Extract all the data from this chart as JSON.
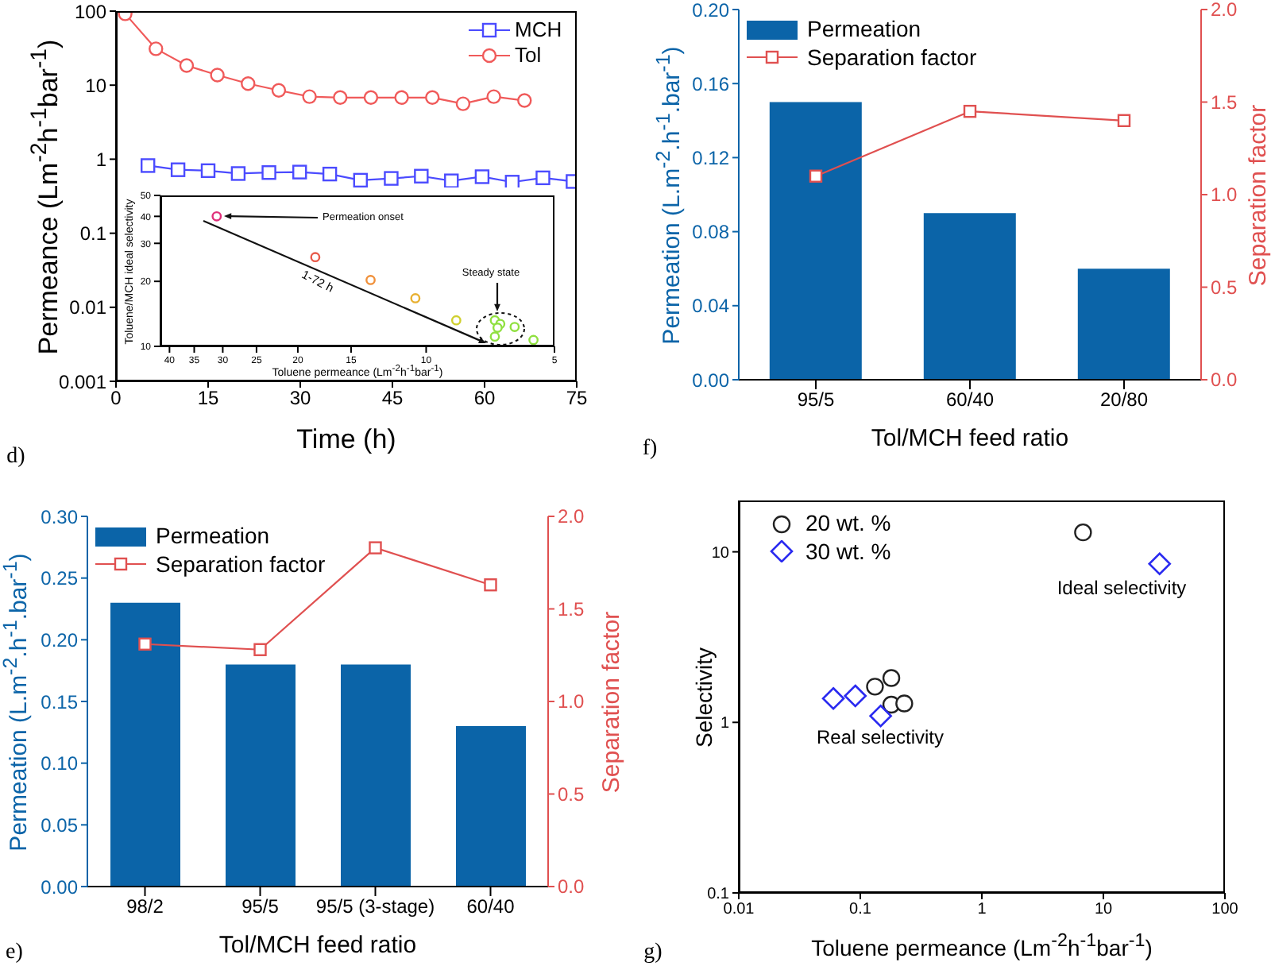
{
  "chart_data": [
    {
      "type": "line",
      "xlabel": "Time (h)",
      "ylabel": "Permeance (Lm$^{-2}$h$^{-1}$bar$^{-1}$)",
      "log": "y",
      "xlim": [
        0,
        75
      ],
      "xticks": [
        0,
        15,
        30,
        45,
        60,
        75
      ],
      "ylim": [
        0.001,
        100
      ],
      "yticks": [
        0.001,
        0.01,
        0.1,
        1,
        10,
        100
      ],
      "legend": "top right",
      "annotations": [
        "d)"
      ],
      "series": [
        {
          "name": "MCH",
          "color": "#4b4bff",
          "marker": "square",
          "x": [
            5.2,
            10.1,
            15,
            19.9,
            24.9,
            29.9,
            34.8,
            39.8,
            44.8,
            49.7,
            54.6,
            59.6,
            64.5,
            69.5,
            74.4
          ],
          "values": [
            0.82,
            0.72,
            0.7,
            0.64,
            0.66,
            0.67,
            0.63,
            0.52,
            0.55,
            0.59,
            0.51,
            0.58,
            0.49,
            0.56,
            0.5
          ]
        },
        {
          "name": "Tol",
          "color": "#f05a5a",
          "marker": "circle",
          "x": [
            1.5,
            6.5,
            11.5,
            16.5,
            21.5,
            26.5,
            31.5,
            36.5,
            41.5,
            46.5,
            51.5,
            56.5,
            61.5,
            66.5
          ],
          "values": [
            92,
            31,
            18.4,
            13.7,
            10.5,
            8.5,
            7,
            6.8,
            6.8,
            6.8,
            6.8,
            5.6,
            7,
            6.2
          ]
        }
      ]
    },
    {
      "type": "scatter",
      "xlabel": "Toluene permeance (Lm$^{-2}$h$^{-1}$bar$^{-1}$)",
      "ylabel": "Toluene/MCH ideal selectivity",
      "log": "xy",
      "xlim": [
        42,
        5
      ],
      "xticks": [
        40,
        35,
        30,
        25,
        20,
        15,
        10,
        5
      ],
      "ylim": [
        10,
        50
      ],
      "yticks": [
        10,
        20,
        30,
        40,
        50
      ],
      "marker": "circle",
      "x": [
        31,
        18.2,
        13.5,
        10.6,
        8.5,
        6.9,
        6.7,
        6.8,
        6.9,
        6.2,
        5.6
      ],
      "values": [
        40,
        25.9,
        20.3,
        16.7,
        13.2,
        13.2,
        12.7,
        12.2,
        11.1,
        12.3,
        10.7
      ],
      "colors": [
        "#e0307a",
        "#e85a4a",
        "#f0903a",
        "#e8b030",
        "#d0d030",
        "#90e040",
        "#90e040",
        "#90e040",
        "#90e040",
        "#90e040",
        "#90e040"
      ],
      "annotations": [
        "Permeation onset",
        "Steady state",
        "1-72 h"
      ]
    },
    {
      "type": "bar",
      "categories": [
        "95/5",
        "60/40",
        "20/80"
      ],
      "xlabel": "Tol/MCH feed ratio",
      "ylabel": "Permeation (L.m$^{-2}$.h$^{-1}$.bar$^{-1}$)",
      "y2label": "Separation factor",
      "ylim": [
        0,
        0.2
      ],
      "yticks": [
        {
          "value": 0,
          "label": "0.00"
        },
        0.04,
        0.08,
        0.12,
        0.16,
        {
          "value": 0.2,
          "label": "0.20"
        }
      ],
      "y2lim": [
        0,
        2
      ],
      "y2ticks": [
        {
          "value": 0,
          "label": "0.0"
        },
        {
          "value": 0.5,
          "label": "0.5"
        },
        {
          "value": 1,
          "label": "1.0"
        },
        {
          "value": 1.5,
          "label": "1.5"
        },
        {
          "value": 2,
          "label": "2.0"
        }
      ],
      "legend": "top left",
      "annotations": [
        "f)"
      ],
      "series": [
        {
          "name": "Permeation",
          "color": "#0b64a8",
          "values": [
            0.15,
            0.09,
            0.06
          ]
        },
        {
          "name": "Separation factor",
          "type": "line",
          "axis": "y2",
          "marker": "square",
          "color": "#e05050",
          "values": [
            1.1,
            1.45,
            1.4
          ]
        }
      ]
    },
    {
      "type": "bar",
      "categories": [
        "98/2",
        "95/5",
        "95/5 (3-stage)",
        "60/40"
      ],
      "xlabel": "Tol/MCH feed ratio",
      "ylabel": "Permeation (L.m$^{-2}$.h$^{-1}$.bar$^{-1}$)",
      "y2label": "Separation factor",
      "ylim": [
        0,
        0.3
      ],
      "yticks": [
        {
          "value": 0,
          "label": "0.00"
        },
        0.05,
        {
          "value": 0.1,
          "label": "0.10"
        },
        0.15,
        {
          "value": 0.2,
          "label": "0.20"
        },
        0.25,
        {
          "value": 0.3,
          "label": "0.30"
        }
      ],
      "y2lim": [
        0,
        2
      ],
      "y2ticks": [
        {
          "value": 0,
          "label": "0.0"
        },
        {
          "value": 0.5,
          "label": "0.5"
        },
        {
          "value": 1,
          "label": "1.0"
        },
        {
          "value": 1.5,
          "label": "1.5"
        },
        {
          "value": 2,
          "label": "2.0"
        }
      ],
      "legend": "top left",
      "annotations": [
        "e)"
      ],
      "series": [
        {
          "name": "Permeation",
          "color": "#0b64a8",
          "values": [
            0.23,
            0.18,
            0.18,
            0.13
          ]
        },
        {
          "name": "Separation factor",
          "type": "line",
          "axis": "y2",
          "marker": "square",
          "color": "#e05050",
          "values": [
            1.31,
            1.28,
            1.83,
            1.63
          ]
        }
      ]
    },
    {
      "type": "scatter",
      "xlabel": "Toluene permeance (Lm$^{-2}$h$^{-1}$bar$^{-1}$)",
      "ylabel": "Selectivity",
      "log": "xy",
      "xlim": [
        0.01,
        100
      ],
      "xticks": [
        0.01,
        0.1,
        1,
        10,
        100
      ],
      "ylim": [
        0.1,
        20
      ],
      "yticks": [
        0.1,
        1,
        10
      ],
      "legend": "top left",
      "annotations": [
        "Ideal selectivity",
        "Real selectivity",
        "g)"
      ],
      "series": [
        {
          "name": "20 wt. %",
          "color": "#222222",
          "marker": "circle",
          "x": [
            6.8,
            0.132,
            0.18,
            0.18,
            0.23
          ],
          "values": [
            13,
            1.62,
            1.82,
            1.27,
            1.29
          ]
        },
        {
          "name": "30 wt. %",
          "color": "#2a2af0",
          "marker": "diamond",
          "x": [
            29,
            0.06,
            0.091,
            0.147
          ],
          "values": [
            8.5,
            1.38,
            1.43,
            1.09
          ]
        }
      ]
    }
  ]
}
